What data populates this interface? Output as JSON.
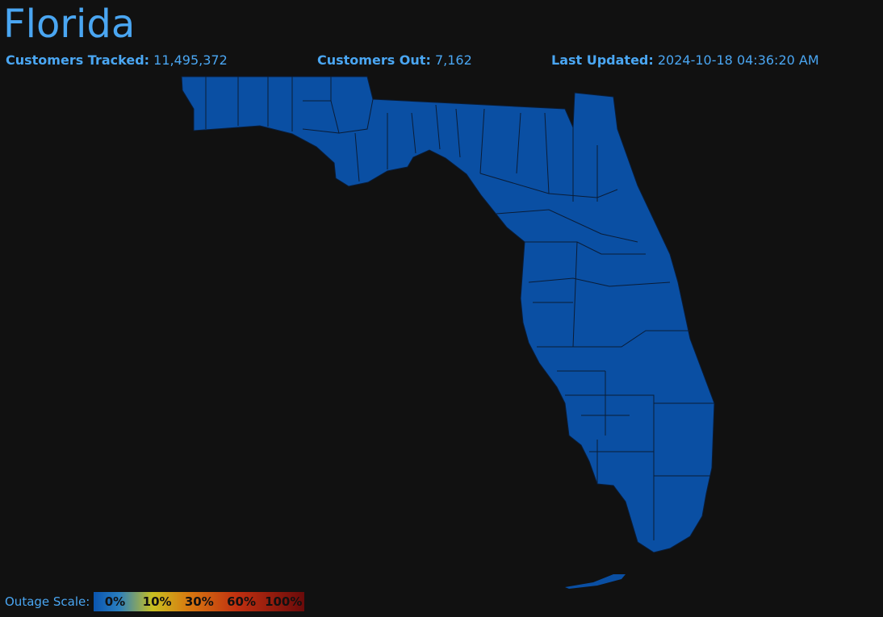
{
  "header": {
    "title": "Florida"
  },
  "stats": [
    {
      "label": "Customers Tracked:",
      "value": "11,495,372"
    },
    {
      "label": "Customers Out:",
      "value": "7,162"
    },
    {
      "label": "Last Updated:",
      "value": "2024-10-18 04:36:20 AM"
    }
  ],
  "legend": {
    "title": "Outage Scale:",
    "labels": [
      "0%",
      "10%",
      "30%",
      "60%",
      "100%"
    ]
  }
}
